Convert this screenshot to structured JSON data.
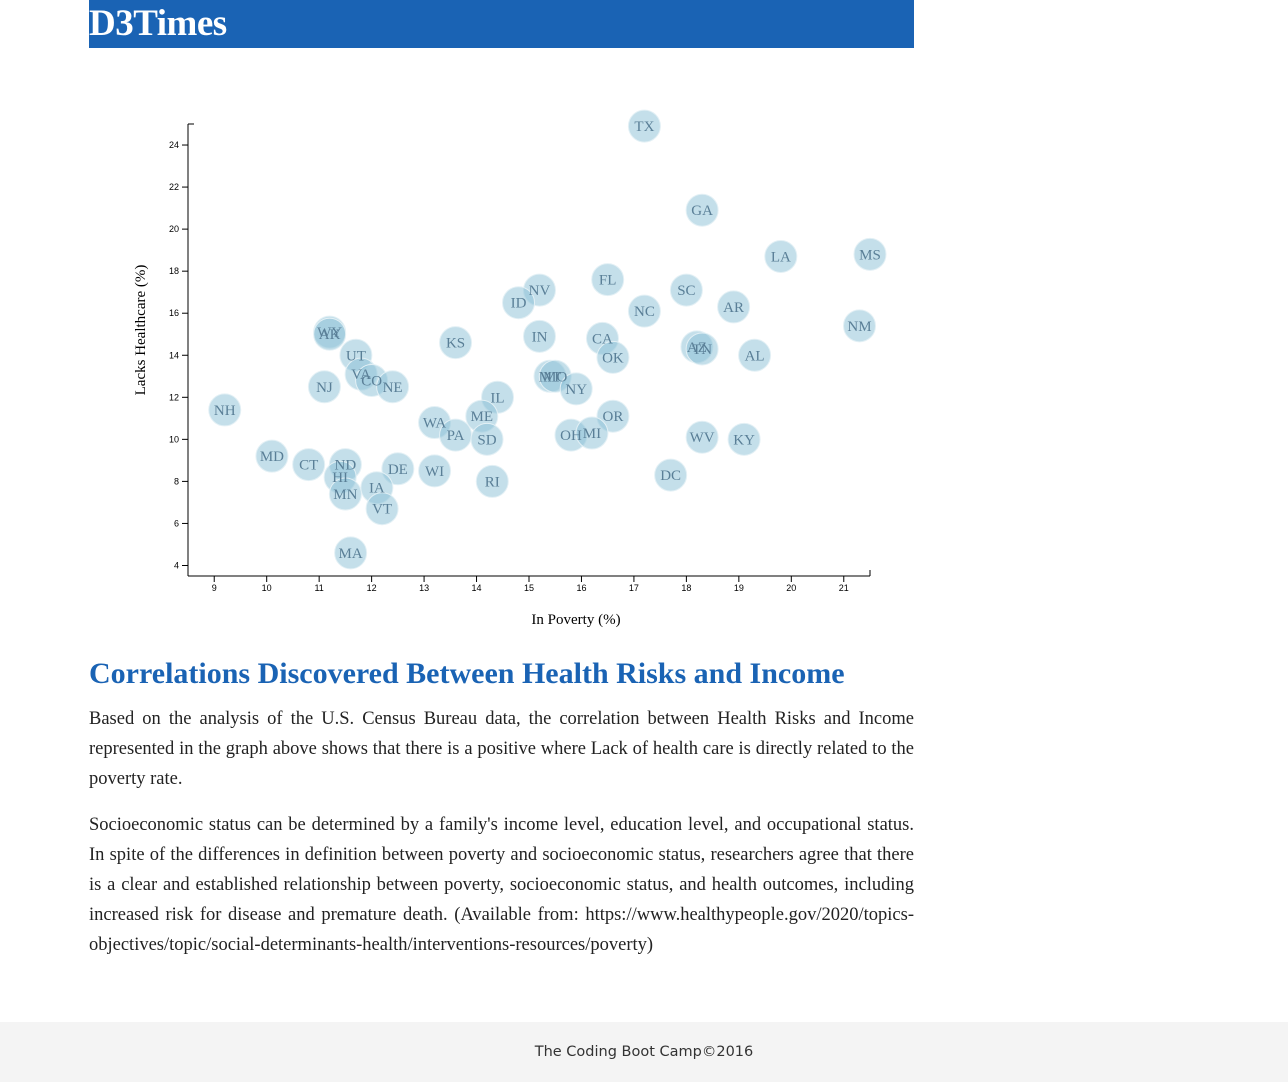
{
  "header": {
    "brand": "D3Times"
  },
  "chart_data": {
    "type": "scatter",
    "xlabel": "In Poverty (%)",
    "ylabel": "Lacks Healthcare (%)",
    "xlim": [
      8.5,
      21.5
    ],
    "ylim": [
      3.5,
      25
    ],
    "x_ticks": [
      9,
      10,
      11,
      12,
      13,
      14,
      15,
      16,
      17,
      18,
      19,
      20,
      21
    ],
    "y_ticks": [
      4,
      6,
      8,
      10,
      12,
      14,
      16,
      18,
      20,
      22,
      24
    ],
    "marker_color": "#89bfd5",
    "label_color": "#5a7f97",
    "points": [
      {
        "label": "TX",
        "x": 17.2,
        "y": 24.9
      },
      {
        "label": "GA",
        "x": 18.3,
        "y": 20.9
      },
      {
        "label": "LA",
        "x": 19.8,
        "y": 18.7
      },
      {
        "label": "MS",
        "x": 21.5,
        "y": 18.8
      },
      {
        "label": "FL",
        "x": 16.5,
        "y": 17.6
      },
      {
        "label": "NV",
        "x": 15.2,
        "y": 17.1
      },
      {
        "label": "SC",
        "x": 18.0,
        "y": 17.1
      },
      {
        "label": "ID",
        "x": 14.8,
        "y": 16.5
      },
      {
        "label": "AR",
        "x": 18.9,
        "y": 16.3
      },
      {
        "label": "NC",
        "x": 17.2,
        "y": 16.1
      },
      {
        "label": "NM",
        "x": 21.3,
        "y": 15.4
      },
      {
        "label": "WY",
        "x": 11.2,
        "y": 15.1
      },
      {
        "label": "AK",
        "x": 11.2,
        "y": 15.0
      },
      {
        "label": "IN",
        "x": 15.2,
        "y": 14.9
      },
      {
        "label": "CA",
        "x": 16.4,
        "y": 14.8
      },
      {
        "label": "KS",
        "x": 13.6,
        "y": 14.6
      },
      {
        "label": "AZ",
        "x": 18.2,
        "y": 14.4
      },
      {
        "label": "TN",
        "x": 18.3,
        "y": 14.3
      },
      {
        "label": "AL",
        "x": 19.3,
        "y": 14.0
      },
      {
        "label": "OK",
        "x": 16.6,
        "y": 13.9
      },
      {
        "label": "UT",
        "x": 11.7,
        "y": 14.0
      },
      {
        "label": "VA",
        "x": 11.8,
        "y": 13.1
      },
      {
        "label": "CO",
        "x": 12.0,
        "y": 12.8
      },
      {
        "label": "NE",
        "x": 12.4,
        "y": 12.5
      },
      {
        "label": "MT",
        "x": 15.4,
        "y": 13.0
      },
      {
        "label": "MO",
        "x": 15.5,
        "y": 13.0
      },
      {
        "label": "NY",
        "x": 15.9,
        "y": 12.4
      },
      {
        "label": "NJ",
        "x": 11.1,
        "y": 12.5
      },
      {
        "label": "IL",
        "x": 14.4,
        "y": 12.0
      },
      {
        "label": "NH",
        "x": 9.2,
        "y": 11.4
      },
      {
        "label": "ME",
        "x": 14.1,
        "y": 11.1
      },
      {
        "label": "OR",
        "x": 16.6,
        "y": 11.1
      },
      {
        "label": "WA",
        "x": 13.2,
        "y": 10.8
      },
      {
        "label": "PA",
        "x": 13.6,
        "y": 10.2
      },
      {
        "label": "SD",
        "x": 14.2,
        "y": 10.0
      },
      {
        "label": "OH",
        "x": 15.8,
        "y": 10.2
      },
      {
        "label": "MI",
        "x": 16.2,
        "y": 10.3
      },
      {
        "label": "WV",
        "x": 18.3,
        "y": 10.1
      },
      {
        "label": "KY",
        "x": 19.1,
        "y": 10.0
      },
      {
        "label": "MD",
        "x": 10.1,
        "y": 9.2
      },
      {
        "label": "CT",
        "x": 10.8,
        "y": 8.8
      },
      {
        "label": "ND",
        "x": 11.5,
        "y": 8.8
      },
      {
        "label": "HI",
        "x": 11.4,
        "y": 8.2
      },
      {
        "label": "DE",
        "x": 12.5,
        "y": 8.6
      },
      {
        "label": "WI",
        "x": 13.2,
        "y": 8.5
      },
      {
        "label": "DC",
        "x": 17.7,
        "y": 8.3
      },
      {
        "label": "RI",
        "x": 14.3,
        "y": 8.0
      },
      {
        "label": "IA",
        "x": 12.1,
        "y": 7.7
      },
      {
        "label": "MN",
        "x": 11.5,
        "y": 7.4
      },
      {
        "label": "VT",
        "x": 12.2,
        "y": 6.7
      },
      {
        "label": "MA",
        "x": 11.6,
        "y": 4.6
      }
    ]
  },
  "article": {
    "title": "Correlations Discovered Between Health Risks and Income",
    "paragraph1": "Based on the analysis of the U.S. Census Bureau data, the correlation between Health Risks and Income represented in the graph above shows that there is a positive where Lack of health care is directly related to the poverty rate.",
    "paragraph2": "Socioeconomic status can be determined by a family's income level, education level, and occupational status. In spite of the differences in definition between poverty and socioeconomic status, researchers agree that there is a clear and established relationship between poverty, socioeconomic status, and health outcomes, including increased risk for disease and premature death. (Available from: https://www.healthypeople.gov/2020/topics-objectives/topic/social-determinants-health/interventions-resources/poverty)"
  },
  "footer": {
    "text": "The Coding Boot Camp©2016"
  }
}
